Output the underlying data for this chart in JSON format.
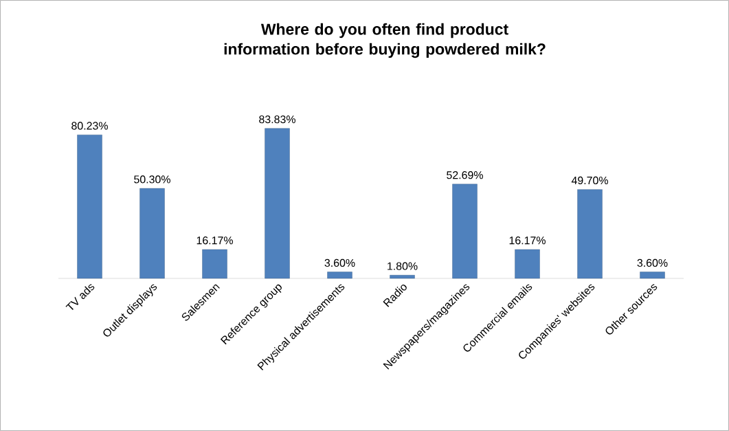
{
  "chart_data": {
    "type": "bar",
    "title": "Where do you often find product information before buying powdered milk?",
    "categories": [
      "TV ads",
      "Outlet displays",
      "Salesmen",
      "Reference group",
      "Physical advertisements",
      "Radio",
      "Newspapers/magazines",
      "Commercial emails",
      "Companies' websites",
      "Other sources"
    ],
    "values": [
      80.23,
      50.3,
      16.17,
      83.83,
      3.6,
      1.8,
      52.69,
      16.17,
      49.7,
      3.6
    ],
    "value_labels": [
      "80.23%",
      "50.30%",
      "16.17%",
      "83.83%",
      "3.60%",
      "1.80%",
      "52.69%",
      "16.17%",
      "49.70%",
      "3.60%"
    ],
    "color": "#4f81bd"
  }
}
